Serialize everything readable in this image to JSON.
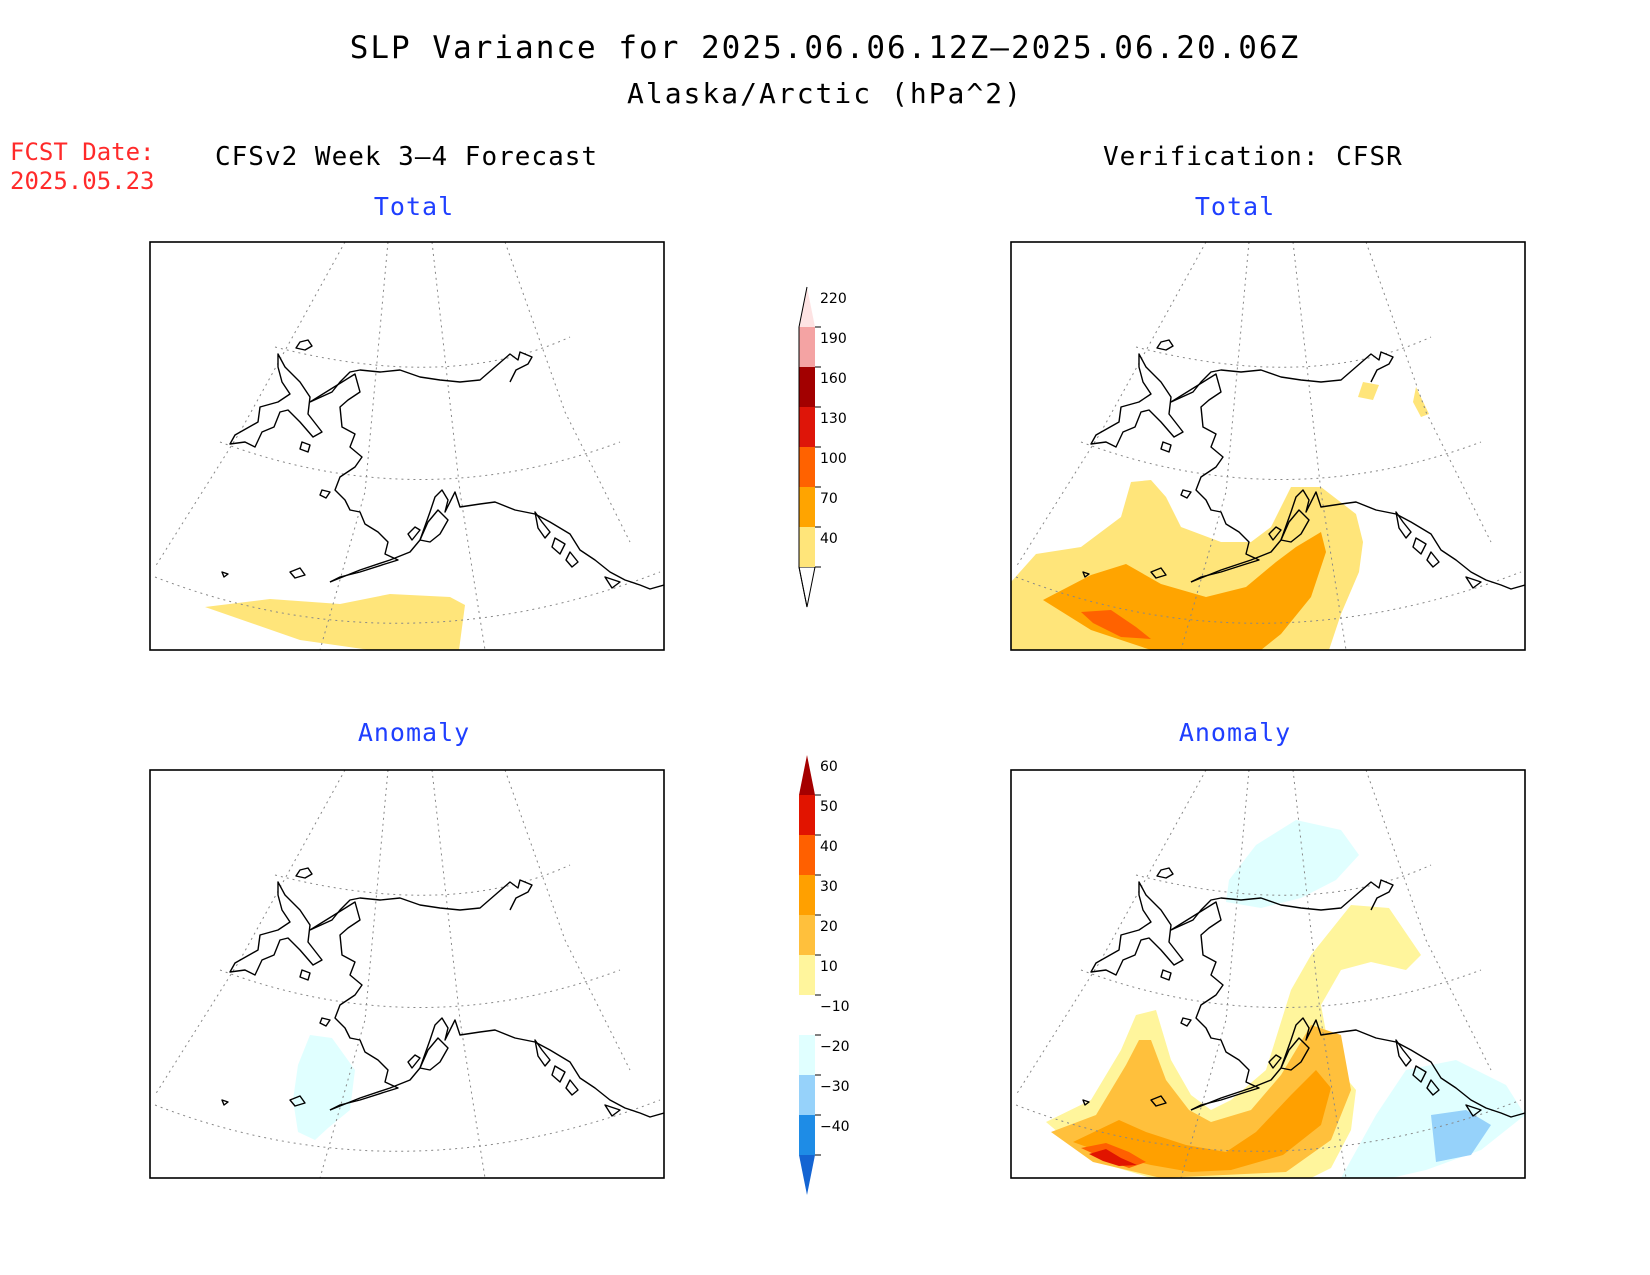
{
  "title": "SLP Variance for 2025.06.06.12Z–2025.06.20.06Z",
  "subtitle": "Alaska/Arctic (hPa^2)",
  "forecast_date": {
    "label": "FCST Date:",
    "value": "2025.05.23"
  },
  "columns": {
    "left": "CFSv2 Week 3–4 Forecast",
    "right": "Verification: CFSR"
  },
  "panels": {
    "forecast_total": {
      "title": "Total"
    },
    "verification_total": {
      "title": "Total"
    },
    "forecast_anomaly": {
      "title": "Anomaly"
    },
    "verification_anomaly": {
      "title": "Anomaly"
    }
  },
  "colorbar_total": {
    "labels": [
      "40",
      "70",
      "100",
      "130",
      "160",
      "190",
      "220"
    ],
    "colors": [
      "#ffe57a",
      "#ffa400",
      "#ff6200",
      "#de1509",
      "#a20000",
      "#f4a3a3",
      "#fde3e3"
    ]
  },
  "colorbar_anomaly": {
    "labels": [
      "−40",
      "−30",
      "−20",
      "−10",
      "10",
      "20",
      "30",
      "40",
      "50",
      "60"
    ],
    "colors": [
      "#1464d2",
      "#1e8ce6",
      "#96d2fa",
      "#e0ffff",
      "#ffffff",
      "#fff59c",
      "#ffc03c",
      "#ffa000",
      "#ff6000",
      "#e11400",
      "#a50000"
    ]
  }
}
